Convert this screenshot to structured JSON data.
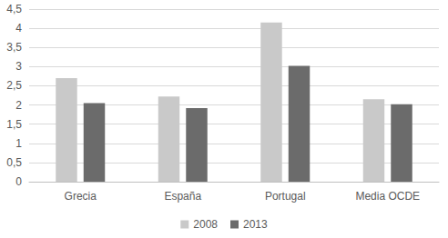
{
  "chart_data": {
    "type": "bar",
    "categories": [
      "Grecia",
      "España",
      "Portugal",
      "Media OCDE"
    ],
    "series": [
      {
        "name": "2008",
        "color": "#c9c9c9",
        "values": [
          2.7,
          2.22,
          4.15,
          2.15
        ]
      },
      {
        "name": "2013",
        "color": "#6b6b6b",
        "values": [
          2.05,
          1.92,
          3.02,
          2.02
        ]
      }
    ],
    "ylim": [
      0,
      4.5
    ],
    "yticks": [
      0,
      {
        "value": 0.5,
        "label": "0,5"
      },
      1,
      {
        "value": 1.5,
        "label": "1,5"
      },
      2,
      {
        "value": 2.5,
        "label": "2,5"
      },
      3,
      {
        "value": 3.5,
        "label": "3,5"
      },
      4,
      {
        "value": 4.5,
        "label": "4,5"
      }
    ],
    "grid": true,
    "legend": "bottom"
  }
}
